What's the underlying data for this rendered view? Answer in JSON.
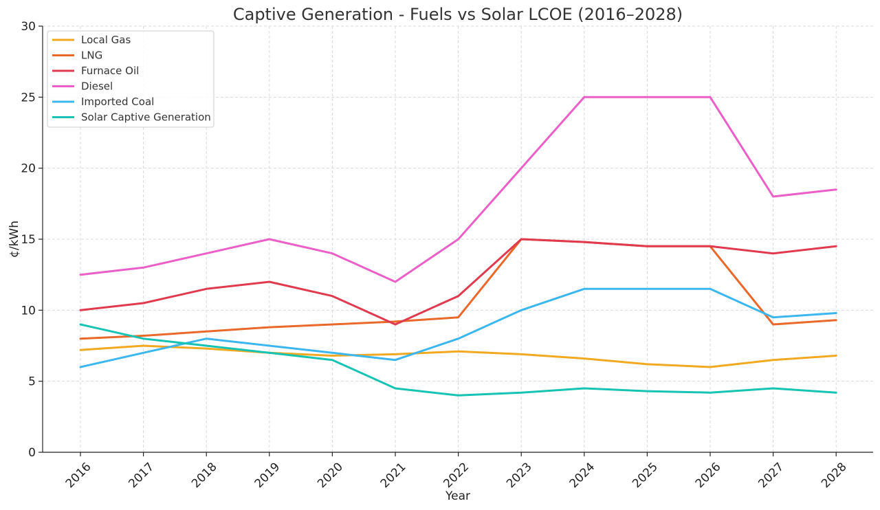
{
  "chart_data": {
    "type": "line",
    "title": "Captive Generation - Fuels vs Solar LCOE (2016–2028)",
    "xlabel": "Year",
    "ylabel": "¢/kWh",
    "x": [
      "2016",
      "2017",
      "2018",
      "2019",
      "2020",
      "2021",
      "2022",
      "2023",
      "2024",
      "2025",
      "2026",
      "2027",
      "2028"
    ],
    "ylim": [
      0,
      30
    ],
    "yticks": [
      "0",
      "5",
      "10",
      "15",
      "20",
      "25",
      "30"
    ],
    "grid": true,
    "legend_position": "top-left",
    "series": [
      {
        "name": "Local Gas",
        "color": "#f2a922",
        "values": [
          7.2,
          7.5,
          7.3,
          7.0,
          6.8,
          6.9,
          7.1,
          6.9,
          6.6,
          6.2,
          6.0,
          6.5,
          6.8
        ]
      },
      {
        "name": "LNG",
        "color": "#e8692a",
        "values": [
          8.0,
          8.2,
          8.5,
          8.8,
          9.0,
          9.2,
          9.5,
          15.0,
          14.8,
          14.5,
          14.5,
          9.0,
          9.3
        ]
      },
      {
        "name": "Furnace Oil",
        "color": "#e03a4f",
        "values": [
          10.0,
          10.5,
          11.5,
          12.0,
          11.0,
          9.0,
          11.0,
          15.0,
          14.8,
          14.5,
          14.5,
          14.0,
          14.5
        ]
      },
      {
        "name": "Diesel",
        "color": "#ea5fc8",
        "values": [
          12.5,
          13.0,
          14.0,
          15.0,
          14.0,
          12.0,
          15.0,
          20.0,
          25.0,
          25.0,
          25.0,
          18.0,
          18.5
        ]
      },
      {
        "name": "Imported Coal",
        "color": "#3bb7ee",
        "values": [
          6.0,
          7.0,
          8.0,
          7.5,
          7.0,
          6.5,
          8.0,
          10.0,
          11.5,
          11.5,
          11.5,
          9.5,
          9.8
        ]
      },
      {
        "name": "Solar Captive Generation",
        "color": "#17c3b2",
        "values": [
          9.0,
          8.0,
          7.5,
          7.0,
          6.5,
          4.5,
          4.0,
          4.2,
          4.5,
          4.3,
          4.2,
          4.5,
          4.2
        ]
      }
    ]
  }
}
